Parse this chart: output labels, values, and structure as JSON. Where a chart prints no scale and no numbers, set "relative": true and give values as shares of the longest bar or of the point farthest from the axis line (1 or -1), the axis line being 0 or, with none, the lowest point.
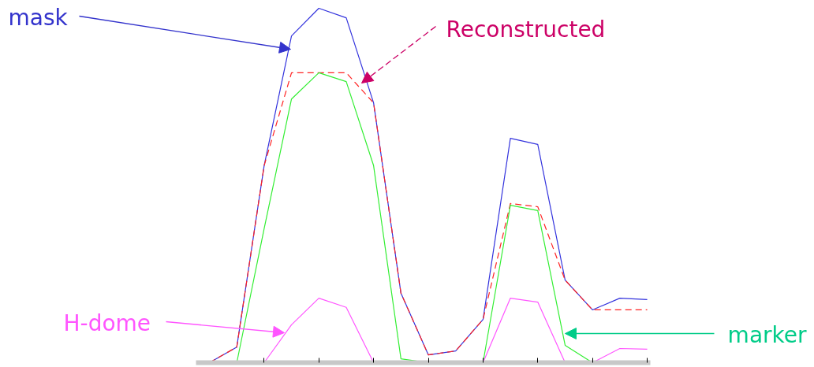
{
  "chart_data": {
    "type": "line",
    "relative": true,
    "categories": [
      null,
      null,
      null,
      null,
      null,
      null,
      null,
      null,
      null,
      null,
      null,
      null,
      null,
      null,
      null,
      null,
      null
    ],
    "series": [
      {
        "name": "mask",
        "color": "#3333dd",
        "values": [
          0,
          0.044,
          0.556,
          0.922,
          1,
          0.973,
          0.733,
          0.196,
          0.022,
          0.033,
          0.122,
          0.633,
          0.616,
          0.233,
          0.149,
          0.182,
          0.178
        ]
      },
      {
        "name": "Reconstructed",
        "color": "#ff2222",
        "line_style": "dashed",
        "values": [
          0,
          0.044,
          0.556,
          0.818,
          0.818,
          0.818,
          0.733,
          0.196,
          0.022,
          0.033,
          0.122,
          0.449,
          0.44,
          0.233,
          0.149,
          0.149,
          0.149
        ]
      },
      {
        "name": "marker",
        "color": "#33ee33",
        "values": [
          0,
          0,
          0.378,
          0.744,
          0.818,
          0.793,
          0.556,
          0.011,
          0,
          0,
          0,
          0.444,
          0.429,
          0.049,
          0,
          0,
          0
        ]
      },
      {
        "name": "H-dome",
        "color": "#ff55ff",
        "values": [
          0,
          0,
          0,
          0.107,
          0.182,
          0.156,
          0,
          0,
          0,
          0,
          0,
          0.182,
          0.171,
          0,
          0,
          0.04,
          0.038
        ]
      }
    ],
    "line_style": "solid",
    "marker": "none",
    "grid": false
  }
}
